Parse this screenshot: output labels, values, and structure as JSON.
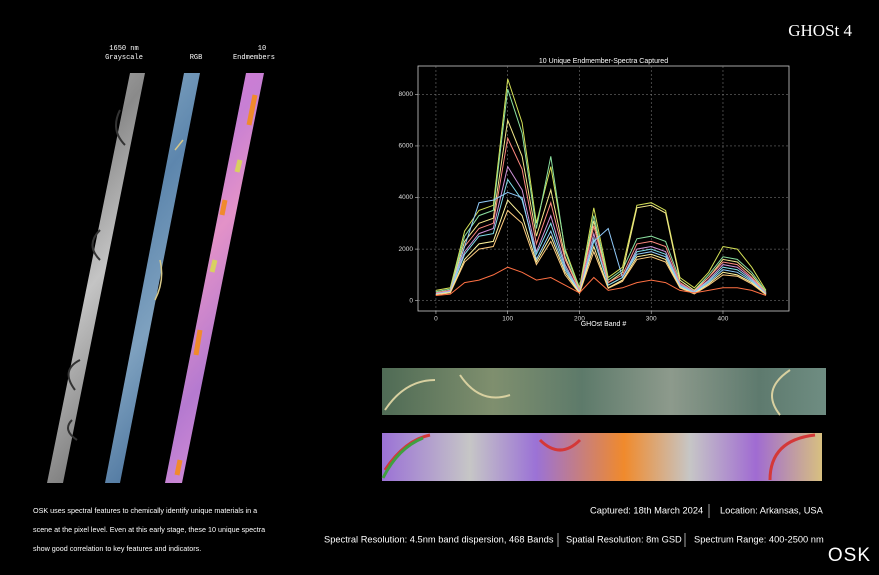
{
  "header": {
    "title": "GHOSt 4"
  },
  "strips": [
    {
      "label_lines": [
        "1650 nm",
        "Grayscale"
      ]
    },
    {
      "label_lines": [
        "RGB"
      ]
    },
    {
      "label_lines": [
        "10",
        "Endmembers"
      ]
    }
  ],
  "chart_data": {
    "type": "line",
    "title": "10 Unique Endmember-Spectra Captured",
    "x_label": "GHOst Band #",
    "x": [
      0,
      20,
      40,
      60,
      80,
      100,
      120,
      140,
      160,
      180,
      200,
      220,
      240,
      260,
      280,
      300,
      320,
      340,
      360,
      380,
      400,
      420,
      440,
      460
    ],
    "series": [
      {
        "color": "#d4e157",
        "values": [
          400,
          500,
          2700,
          3500,
          3700,
          8600,
          6900,
          3000,
          5200,
          2000,
          500,
          3600,
          900,
          1300,
          3700,
          3800,
          3500,
          900,
          500,
          1100,
          2100,
          2000,
          1300,
          400
        ]
      },
      {
        "color": "#8be0a0",
        "values": [
          350,
          450,
          2500,
          3300,
          3500,
          8200,
          6500,
          2800,
          5600,
          1900,
          450,
          3300,
          800,
          1200,
          2400,
          2500,
          2300,
          800,
          400,
          1000,
          1700,
          1600,
          1100,
          350
        ]
      },
      {
        "color": "#f2e88a",
        "values": [
          300,
          400,
          2300,
          3000,
          3200,
          7000,
          5600,
          2500,
          4300,
          1700,
          400,
          3100,
          700,
          1100,
          3600,
          3700,
          3400,
          800,
          400,
          900,
          1600,
          1500,
          1000,
          300
        ]
      },
      {
        "color": "#ff8a80",
        "values": [
          300,
          400,
          2100,
          2800,
          3000,
          6300,
          5100,
          2200,
          3800,
          1600,
          400,
          2900,
          700,
          1000,
          2200,
          2300,
          2100,
          700,
          350,
          900,
          1500,
          1400,
          900,
          300
        ]
      },
      {
        "color": "#ce93d8",
        "values": [
          280,
          380,
          1900,
          2600,
          2800,
          5200,
          4300,
          1900,
          3300,
          1400,
          350,
          2600,
          600,
          900,
          2000,
          2100,
          1900,
          650,
          350,
          800,
          1400,
          1300,
          850,
          280
        ]
      },
      {
        "color": "#80deea",
        "values": [
          260,
          350,
          1800,
          2500,
          2600,
          4700,
          3900,
          1800,
          3000,
          1300,
          330,
          2400,
          600,
          900,
          1900,
          2000,
          1800,
          600,
          320,
          750,
          1300,
          1200,
          800,
          260
        ]
      },
      {
        "color": "#90caf9",
        "values": [
          250,
          330,
          2100,
          3800,
          3900,
          4200,
          4000,
          1600,
          2700,
          1200,
          300,
          2300,
          2800,
          900,
          1800,
          1900,
          1700,
          560,
          300,
          700,
          1200,
          1100,
          750,
          250
        ]
      },
      {
        "color": "#fff59d",
        "values": [
          240,
          320,
          1600,
          2200,
          2300,
          3900,
          3300,
          1500,
          2500,
          1100,
          300,
          2100,
          500,
          800,
          1700,
          1800,
          1600,
          520,
          280,
          650,
          1100,
          1000,
          700,
          240
        ]
      },
      {
        "color": "#ffcc80",
        "values": [
          230,
          300,
          1500,
          2000,
          2100,
          3500,
          3000,
          1400,
          2300,
          1000,
          280,
          1900,
          480,
          750,
          1600,
          1700,
          1500,
          500,
          260,
          600,
          1000,
          950,
          650,
          230
        ]
      },
      {
        "color": "#ff7043",
        "values": [
          200,
          250,
          700,
          800,
          1000,
          1300,
          1100,
          800,
          900,
          600,
          300,
          900,
          400,
          500,
          700,
          800,
          700,
          400,
          300,
          400,
          500,
          500,
          400,
          200
        ]
      }
    ],
    "xlim": [
      -25,
      492
    ],
    "ylim": [
      -400,
      9100
    ],
    "xticks": [
      0,
      100,
      200,
      300,
      400
    ],
    "yticks": [
      0,
      2000,
      4000,
      6000,
      8000
    ],
    "grid": true
  },
  "description": [
    "OSK uses spectral features to chemically identify unique materials in a",
    "scene at the pixel level. Even at this early stage, these 10 unique spectra",
    "show good correlation to key features and indicators."
  ],
  "details": {
    "row1": [
      "Captured: 18th March 2024",
      "Location: Arkansas, USA"
    ],
    "row2": [
      "Spectral Resolution: 4.5nm band dispersion, 468 Bands",
      "Spatial Resolution: 8m GSD",
      "Spectrum Range: 400-2500 nm"
    ]
  },
  "logo": "OSK"
}
